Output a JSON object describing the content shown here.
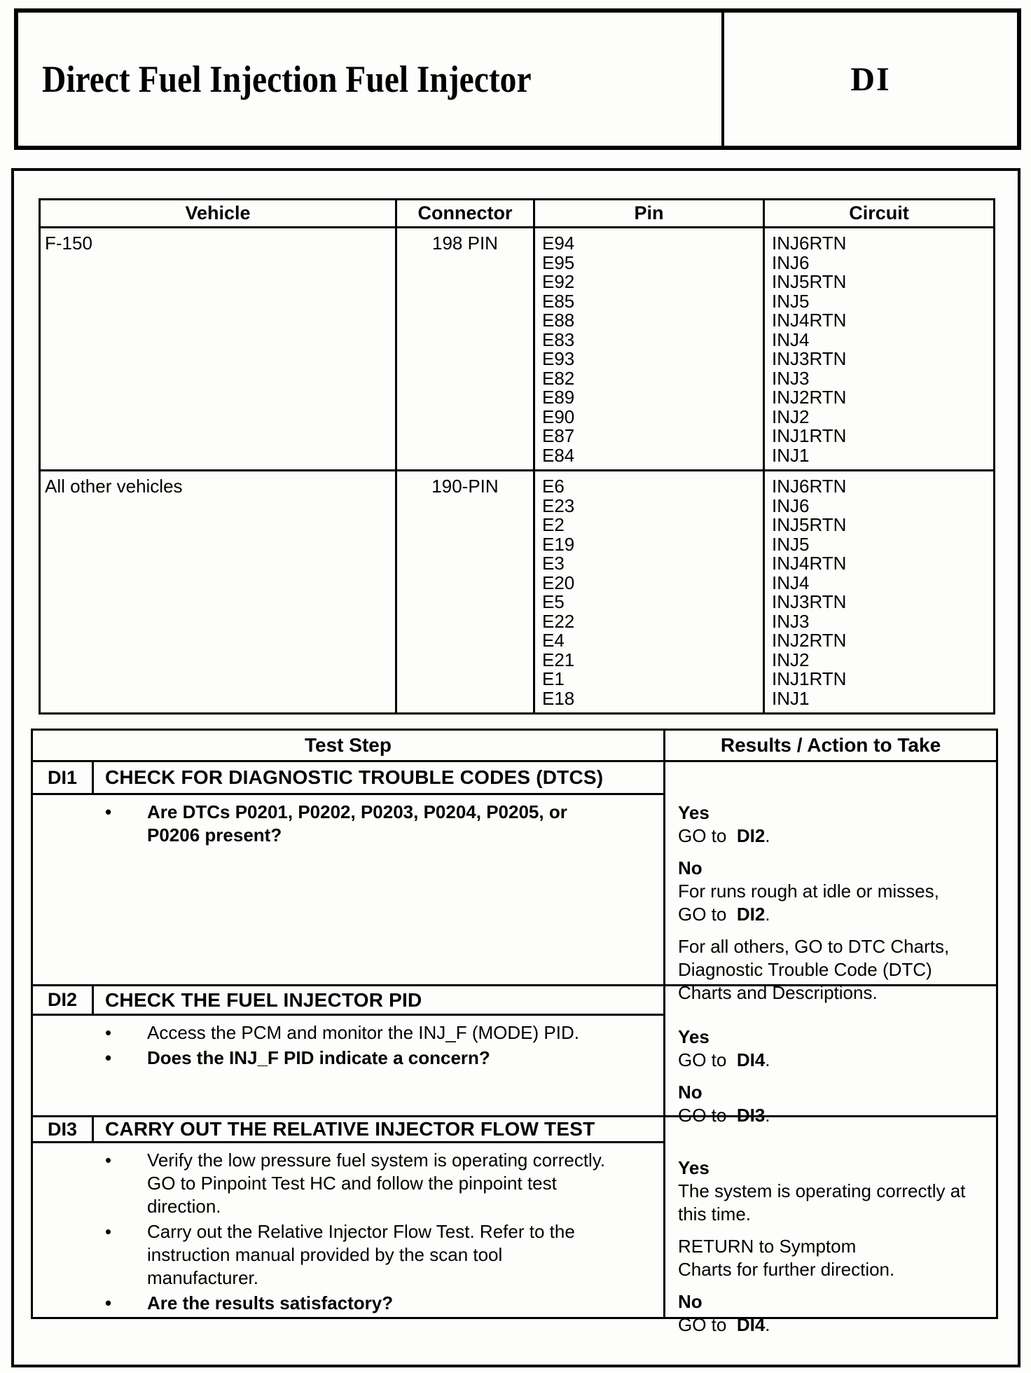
{
  "header": {
    "title": "Direct Fuel Injection Fuel Injector",
    "code": "DI"
  },
  "pin_table": {
    "columns": [
      "Vehicle",
      "Connector",
      "Pin",
      "Circuit"
    ],
    "rows": [
      {
        "vehicle": "F-150",
        "connector": "198 PIN",
        "pins": [
          "E94",
          "E95",
          "E92",
          "E85",
          "E88",
          "E83",
          "E93",
          "E82",
          "E89",
          "E90",
          "E87",
          "E84"
        ],
        "circuits": [
          "INJ6RTN",
          "INJ6",
          "INJ5RTN",
          "INJ5",
          "INJ4RTN",
          "INJ4",
          "INJ3RTN",
          "INJ3",
          "INJ2RTN",
          "INJ2",
          "INJ1RTN",
          "INJ1"
        ]
      },
      {
        "vehicle": "All other vehicles",
        "connector": "190-PIN",
        "pins": [
          "E6",
          "E23",
          "E2",
          "E19",
          "E3",
          "E20",
          "E5",
          "E22",
          "E4",
          "E21",
          "E1",
          "E18"
        ],
        "circuits": [
          "INJ6RTN",
          "INJ6",
          "INJ5RTN",
          "INJ5",
          "INJ4RTN",
          "INJ4",
          "INJ3RTN",
          "INJ3",
          "INJ2RTN",
          "INJ2",
          "INJ1RTN",
          "INJ1"
        ]
      }
    ]
  },
  "test_table": {
    "columns": [
      "Test Step",
      "Results / Action to Take"
    ],
    "steps": [
      {
        "id": "DI1",
        "title": "CHECK FOR DIAGNOSTIC TROUBLE CODES (DTCS)",
        "bullets": [
          {
            "bold": true,
            "text": "Are DTCs P0201, P0202, P0203, P0204, P0205, or\nP0206 present?"
          }
        ],
        "results": [
          {
            "lines": [
              [
                {
                  "t": "Yes",
                  "b": true
                }
              ],
              [
                {
                  "t": "GO to  ",
                  "b": false
                },
                {
                  "t": "DI2",
                  "b": true
                },
                {
                  "t": ".",
                  "b": false
                }
              ]
            ]
          },
          {
            "lines": [
              [
                {
                  "t": "No",
                  "b": true
                }
              ],
              [
                {
                  "t": "For runs rough at idle or misses,",
                  "b": false
                }
              ],
              [
                {
                  "t": "GO to  ",
                  "b": false
                },
                {
                  "t": "DI2",
                  "b": true
                },
                {
                  "t": ".",
                  "b": false
                }
              ]
            ]
          },
          {
            "lines": [
              [
                {
                  "t": "For all others, GO to DTC Charts,",
                  "b": false
                }
              ],
              [
                {
                  "t": "Diagnostic Trouble Code (DTC)",
                  "b": false
                }
              ],
              [
                {
                  "t": "Charts and Descriptions.",
                  "b": false
                }
              ]
            ]
          }
        ]
      },
      {
        "id": "DI2",
        "title": "CHECK THE FUEL INJECTOR PID",
        "bullets": [
          {
            "bold": false,
            "text": "Access the PCM and monitor the INJ_F (MODE) PID."
          },
          {
            "bold": true,
            "text": "Does the INJ_F PID indicate a concern?"
          }
        ],
        "results": [
          {
            "lines": [
              [
                {
                  "t": "Yes",
                  "b": true
                }
              ],
              [
                {
                  "t": "GO to  ",
                  "b": false
                },
                {
                  "t": "DI4",
                  "b": true
                },
                {
                  "t": ".",
                  "b": false
                }
              ]
            ]
          },
          {
            "lines": [
              [
                {
                  "t": "No",
                  "b": true
                }
              ],
              [
                {
                  "t": "GO to  ",
                  "b": false
                },
                {
                  "t": "DI3",
                  "b": true
                },
                {
                  "t": ".",
                  "b": false
                }
              ]
            ]
          }
        ]
      },
      {
        "id": "DI3",
        "title": "CARRY OUT THE RELATIVE INJECTOR FLOW TEST",
        "bullets": [
          {
            "bold": false,
            "text": "Verify the low pressure fuel system is operating correctly.\nGO to Pinpoint Test HC and follow the pinpoint test\ndirection."
          },
          {
            "bold": false,
            "text": "Carry out the Relative Injector Flow Test. Refer to the\ninstruction manual provided by the scan tool\nmanufacturer."
          },
          {
            "bold": true,
            "text": "Are the results satisfactory?"
          }
        ],
        "results": [
          {
            "lines": [
              [
                {
                  "t": "Yes",
                  "b": true
                }
              ],
              [
                {
                  "t": "The system is operating correctly at",
                  "b": false
                }
              ],
              [
                {
                  "t": "this time.",
                  "b": false
                }
              ]
            ]
          },
          {
            "lines": [
              [
                {
                  "t": "RETURN to Symptom",
                  "b": false
                }
              ],
              [
                {
                  "t": "Charts for further direction.",
                  "b": false
                }
              ]
            ]
          },
          {
            "lines": [
              [
                {
                  "t": "No",
                  "b": true
                }
              ],
              [
                {
                  "t": "GO to  ",
                  "b": false
                },
                {
                  "t": "DI4",
                  "b": true
                },
                {
                  "t": ".",
                  "b": false
                }
              ]
            ]
          }
        ]
      }
    ]
  }
}
